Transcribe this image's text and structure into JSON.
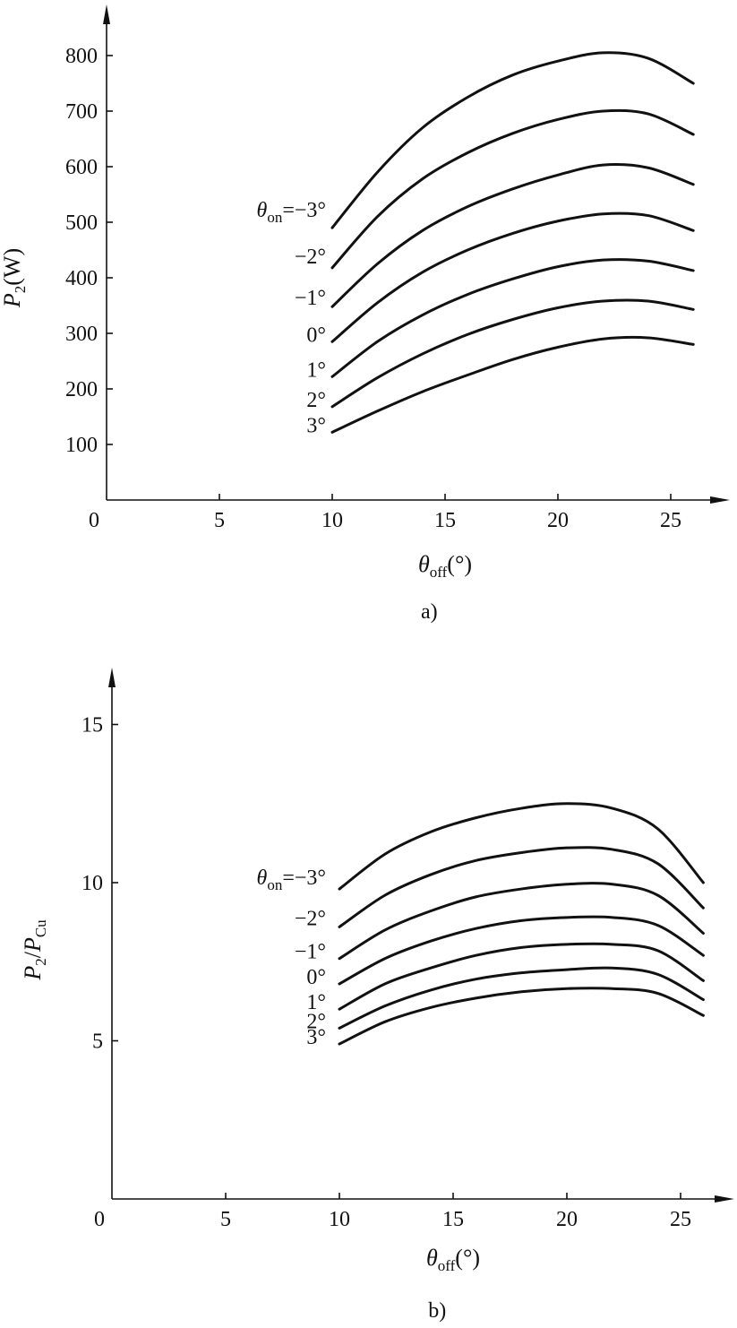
{
  "chart_data": [
    {
      "type": "line",
      "caption": "a)",
      "xlabel": {
        "main": "θ",
        "sub": "off",
        "tail": "(°)"
      },
      "ylabel": {
        "main": "P",
        "sub": "2",
        "tail": "(W)"
      },
      "xlim": [
        0,
        27
      ],
      "ylim": [
        0,
        850
      ],
      "xticks": [
        0,
        5,
        10,
        15,
        20,
        25
      ],
      "yticks": [
        100,
        200,
        300,
        400,
        500,
        600,
        700,
        800
      ],
      "series_label_prefix": {
        "main": "θ",
        "sub": "on",
        "tail": "="
      },
      "series": [
        {
          "name": "−3°",
          "x": [
            10,
            12,
            14,
            16,
            18,
            20,
            22,
            24,
            26
          ],
          "values": [
            490,
            590,
            670,
            725,
            765,
            790,
            805,
            795,
            750
          ]
        },
        {
          "name": "−2°",
          "x": [
            10,
            12,
            14,
            16,
            18,
            20,
            22,
            24,
            26
          ],
          "values": [
            418,
            510,
            578,
            625,
            660,
            685,
            700,
            695,
            658
          ]
        },
        {
          "name": "−1°",
          "x": [
            10,
            12,
            14,
            16,
            18,
            20,
            22,
            24,
            26
          ],
          "values": [
            348,
            425,
            485,
            528,
            560,
            585,
            603,
            598,
            568
          ]
        },
        {
          "name": "0°",
          "x": [
            10,
            12,
            14,
            16,
            18,
            20,
            22,
            24,
            26
          ],
          "values": [
            285,
            355,
            410,
            450,
            480,
            502,
            515,
            512,
            485
          ]
        },
        {
          "name": "1°",
          "x": [
            10,
            12,
            14,
            16,
            18,
            20,
            22,
            24,
            26
          ],
          "values": [
            222,
            285,
            333,
            370,
            398,
            420,
            432,
            430,
            413
          ]
        },
        {
          "name": "2°",
          "x": [
            10,
            12,
            14,
            16,
            18,
            20,
            22,
            24,
            26
          ],
          "values": [
            168,
            220,
            263,
            298,
            325,
            346,
            358,
            358,
            343
          ]
        },
        {
          "name": "3°",
          "x": [
            10,
            12,
            14,
            16,
            18,
            20,
            22,
            24,
            26
          ],
          "values": [
            122,
            160,
            195,
            225,
            253,
            275,
            290,
            292,
            280
          ]
        }
      ]
    },
    {
      "type": "line",
      "caption": "b)",
      "xlabel": {
        "main": "θ",
        "sub": "off",
        "tail": "(°)"
      },
      "ylabel": {
        "main": "P",
        "sub": "2",
        "tail": "/P",
        "sub2": "Cu"
      },
      "xlim": [
        0,
        27
      ],
      "ylim": [
        0,
        16.5
      ],
      "xticks": [
        0,
        5,
        10,
        15,
        20,
        25
      ],
      "yticks": [
        5,
        10,
        15
      ],
      "series_label_prefix": {
        "main": "θ",
        "sub": "on",
        "tail": "="
      },
      "series": [
        {
          "name": "−3°",
          "x": [
            10,
            12,
            14,
            16,
            18,
            20,
            22,
            24,
            26
          ],
          "values": [
            9.8,
            10.9,
            11.6,
            12.05,
            12.35,
            12.5,
            12.35,
            11.7,
            10.0
          ]
        },
        {
          "name": "−2°",
          "x": [
            10,
            12,
            14,
            16,
            18,
            20,
            22,
            24,
            26
          ],
          "values": [
            8.6,
            9.6,
            10.25,
            10.7,
            10.95,
            11.1,
            11.05,
            10.6,
            9.2
          ]
        },
        {
          "name": "−1°",
          "x": [
            10,
            12,
            14,
            16,
            18,
            20,
            22,
            24,
            26
          ],
          "values": [
            7.6,
            8.5,
            9.1,
            9.55,
            9.8,
            9.95,
            9.95,
            9.6,
            8.4
          ]
        },
        {
          "name": "0°",
          "x": [
            10,
            12,
            14,
            16,
            18,
            20,
            22,
            24,
            26
          ],
          "values": [
            6.8,
            7.6,
            8.15,
            8.55,
            8.8,
            8.9,
            8.9,
            8.65,
            7.7
          ]
        },
        {
          "name": "1°",
          "x": [
            10,
            12,
            14,
            16,
            18,
            20,
            22,
            24,
            26
          ],
          "values": [
            6.0,
            6.8,
            7.3,
            7.7,
            7.95,
            8.05,
            8.05,
            7.85,
            6.9
          ]
        },
        {
          "name": "2°",
          "x": [
            10,
            12,
            14,
            16,
            18,
            20,
            22,
            24,
            26
          ],
          "values": [
            5.4,
            6.1,
            6.6,
            6.95,
            7.15,
            7.25,
            7.3,
            7.1,
            6.3
          ]
        },
        {
          "name": "3°",
          "x": [
            10,
            12,
            14,
            16,
            18,
            20,
            22,
            24,
            26
          ],
          "values": [
            4.9,
            5.6,
            6.05,
            6.35,
            6.55,
            6.65,
            6.65,
            6.5,
            5.8
          ]
        }
      ]
    }
  ]
}
